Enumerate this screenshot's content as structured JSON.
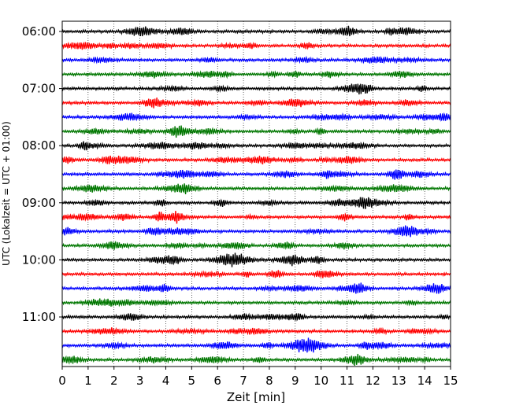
{
  "chart_data": {
    "type": "line",
    "title": "",
    "xlabel": "Zeit  [min]",
    "ylabel": "UTC (Lokalzeit = UTC + 01:00)",
    "xlim": [
      0,
      15
    ],
    "x_ticks": [
      0,
      1,
      2,
      3,
      4,
      5,
      6,
      7,
      8,
      9,
      10,
      11,
      12,
      13,
      14,
      15
    ],
    "y_tick_labels": [
      "06:00",
      "07:00",
      "08:00",
      "09:00",
      "10:00",
      "11:00"
    ],
    "row_interval_min": 15,
    "rows_per_label": 4,
    "grid": "vertical dotted lines at each minute",
    "trace_colors": [
      "#000000",
      "#ff0000",
      "#0000ff",
      "#007700"
    ],
    "rows": [
      {
        "start": "06:00",
        "color": "#000000"
      },
      {
        "start": "06:15",
        "color": "#ff0000"
      },
      {
        "start": "06:30",
        "color": "#0000ff"
      },
      {
        "start": "06:45",
        "color": "#007700"
      },
      {
        "start": "07:00",
        "color": "#000000"
      },
      {
        "start": "07:15",
        "color": "#ff0000"
      },
      {
        "start": "07:30",
        "color": "#0000ff"
      },
      {
        "start": "07:45",
        "color": "#007700"
      },
      {
        "start": "08:00",
        "color": "#000000"
      },
      {
        "start": "08:15",
        "color": "#ff0000"
      },
      {
        "start": "08:30",
        "color": "#0000ff"
      },
      {
        "start": "08:45",
        "color": "#007700"
      },
      {
        "start": "09:00",
        "color": "#000000"
      },
      {
        "start": "09:15",
        "color": "#ff0000"
      },
      {
        "start": "09:30",
        "color": "#0000ff"
      },
      {
        "start": "09:45",
        "color": "#007700"
      },
      {
        "start": "10:00",
        "color": "#000000"
      },
      {
        "start": "10:15",
        "color": "#ff0000"
      },
      {
        "start": "10:30",
        "color": "#0000ff"
      },
      {
        "start": "10:45",
        "color": "#007700"
      },
      {
        "start": "11:00",
        "color": "#000000"
      },
      {
        "start": "11:15",
        "color": "#ff0000"
      },
      {
        "start": "11:30",
        "color": "#0000ff"
      },
      {
        "start": "11:45",
        "color": "#007700"
      }
    ]
  }
}
